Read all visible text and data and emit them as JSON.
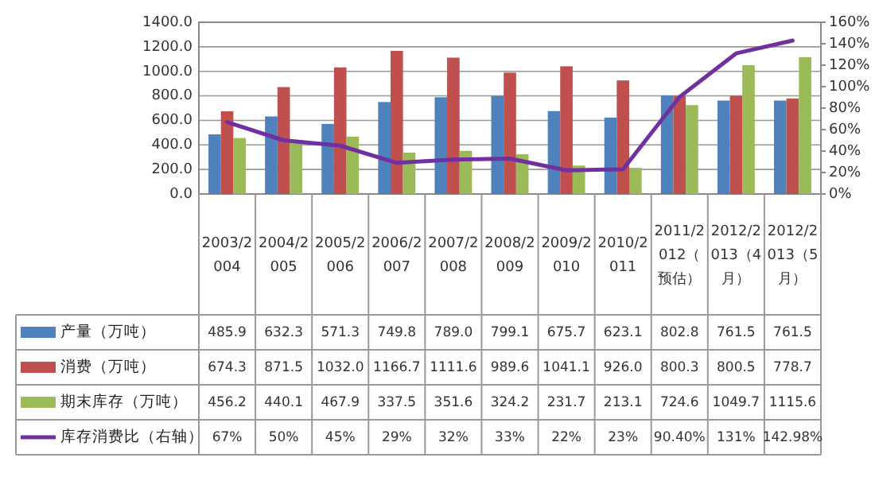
{
  "chart_data": {
    "type": "bar",
    "categories": [
      "2003/2004",
      "2004/2005",
      "2005/2006",
      "2006/2007",
      "2007/2008",
      "2008/2009",
      "2009/2010",
      "2010/2011",
      "2011/2012（预估）",
      "2012/2013（4月）",
      "2012/2013（5月）"
    ],
    "series": [
      {
        "name": "产量（万吨）",
        "color": "#4f81bd",
        "values": [
          485.9,
          632.3,
          571.3,
          749.8,
          789.0,
          799.1,
          675.7,
          623.1,
          802.8,
          761.5,
          761.5
        ],
        "value_labels": [
          "485.9",
          "632.3",
          "571.3",
          "749.8",
          "789.0",
          "799.1",
          "675.7",
          "623.1",
          "802.8",
          "761.5",
          "761.5"
        ]
      },
      {
        "name": "消费（万吨）",
        "color": "#c0504d",
        "values": [
          674.3,
          871.5,
          1032.0,
          1166.7,
          1111.6,
          989.6,
          1041.1,
          926.0,
          800.3,
          800.5,
          778.7
        ],
        "value_labels": [
          "674.3",
          "871.5",
          "1032.0",
          "1166.7",
          "1111.6",
          "989.6",
          "1041.1",
          "926.0",
          "800.3",
          "800.5",
          "778.7"
        ]
      },
      {
        "name": "期末库存（万吨）",
        "color": "#9bbb59",
        "values": [
          456.2,
          440.1,
          467.9,
          337.5,
          351.6,
          324.2,
          231.7,
          213.1,
          724.6,
          1049.7,
          1115.6
        ],
        "value_labels": [
          "456.2",
          "440.1",
          "467.9",
          "337.5",
          "351.6",
          "324.2",
          "231.7",
          "213.1",
          "724.6",
          "1049.7",
          "1115.6"
        ]
      },
      {
        "name": "库存消费比（右轴）",
        "type": "line",
        "axis": "y2",
        "color": "#7030a0",
        "values": [
          67,
          50,
          45,
          29,
          32,
          33,
          22,
          23,
          90.4,
          131,
          142.98
        ],
        "value_labels": [
          "67%",
          "50%",
          "45%",
          "29%",
          "32%",
          "33%",
          "22%",
          "23%",
          "90.40%",
          "131%",
          "142.98%"
        ]
      }
    ],
    "ylim": [
      0,
      1400
    ],
    "yticks": [
      {
        "value": 0,
        "label": "0.0"
      },
      {
        "value": 200,
        "label": "200.0"
      },
      {
        "value": 400,
        "label": "400.0"
      },
      {
        "value": 600,
        "label": "600.0"
      },
      {
        "value": 800,
        "label": "800.0"
      },
      {
        "value": 1000,
        "label": "1000.0"
      },
      {
        "value": 1200,
        "label": "1200.0"
      },
      {
        "value": 1400,
        "label": "1400.0"
      }
    ],
    "y2lim": [
      0,
      160
    ],
    "y2ticks": [
      {
        "value": 0,
        "label": "0%"
      },
      {
        "value": 20,
        "label": "20%"
      },
      {
        "value": 40,
        "label": "40%"
      },
      {
        "value": 60,
        "label": "60%"
      },
      {
        "value": 80,
        "label": "80%"
      },
      {
        "value": 100,
        "label": "100%"
      },
      {
        "value": 120,
        "label": "120%"
      },
      {
        "value": 140,
        "label": "140%"
      },
      {
        "value": 160,
        "label": "160%"
      }
    ],
    "grid": "y",
    "legend": "bottom left",
    "marker": "none"
  }
}
